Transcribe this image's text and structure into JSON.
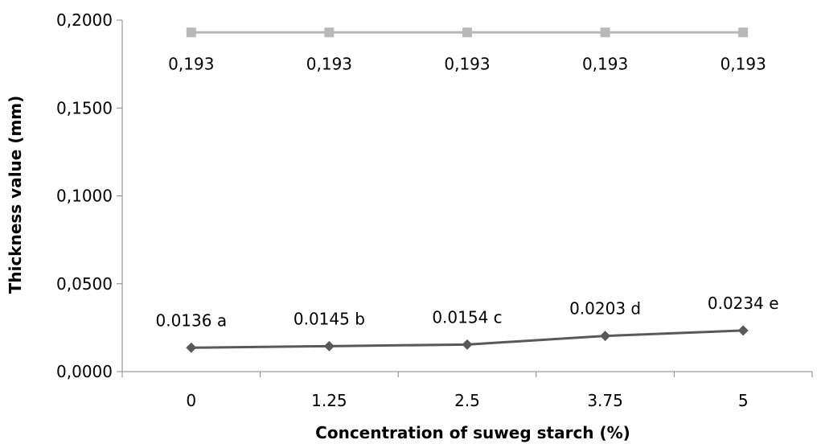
{
  "chart_data": {
    "type": "line",
    "title": "",
    "xlabel": "Concentration of suweg starch (%)",
    "ylabel": "Thickness value (mm)",
    "categories": [
      "0",
      "1.25",
      "2.5",
      "3.75",
      "5"
    ],
    "ylim": [
      0,
      0.2
    ],
    "y_ticks": [
      "0,0000",
      "0,0500",
      "0,1000",
      "0,1500",
      "0,2000"
    ],
    "y_tick_values": [
      0,
      0.05,
      0.1,
      0.15,
      0.2
    ],
    "grid": false,
    "legend": "none",
    "series": [
      {
        "values": [
          0.193,
          0.193,
          0.193,
          0.193,
          0.193
        ],
        "labels": [
          "0,193",
          "0,193",
          "0,193",
          "0,193",
          "0,193"
        ],
        "marker": "square",
        "color": "#b8b8b8",
        "label_position": "below"
      },
      {
        "values": [
          0.0136,
          0.0145,
          0.0154,
          0.0203,
          0.0234
        ],
        "labels": [
          "0.0136 a",
          "0.0145 b",
          "0.0154 c",
          "0.0203 d",
          "0.0234 e"
        ],
        "marker": "diamond",
        "color": "#595959",
        "label_position": "above"
      }
    ],
    "axis_color": "#868686"
  }
}
